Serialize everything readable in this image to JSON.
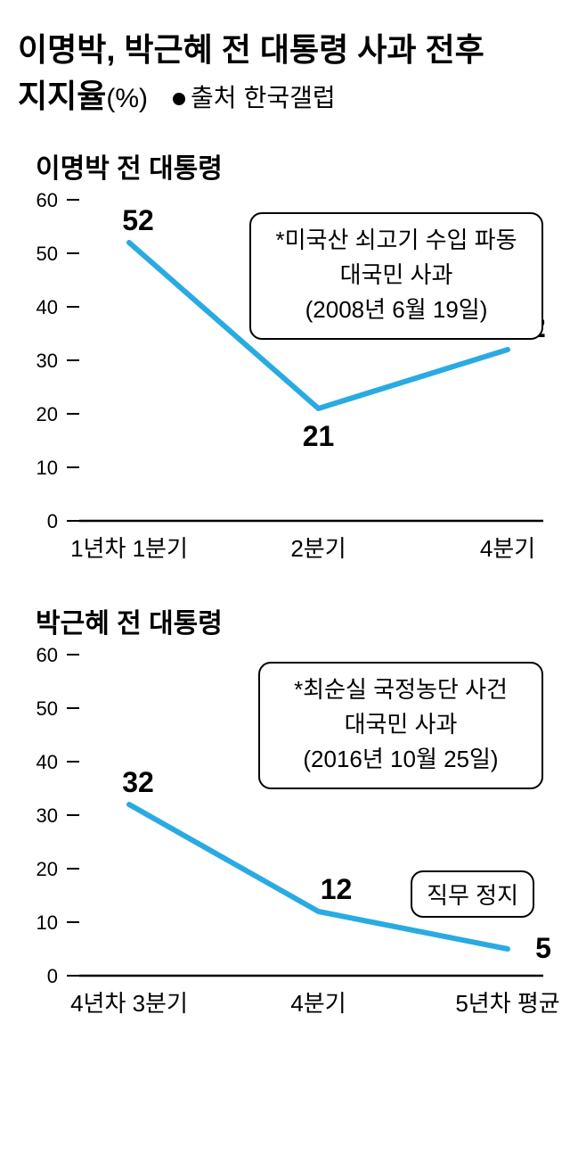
{
  "header": {
    "title_line1": "이명박, 박근혜 전 대통령 사과 전후",
    "title_line2_strong": "지지율",
    "unit": "(%)",
    "source_label": "출처",
    "source_value": "한국갤럽"
  },
  "chart1": {
    "type": "line",
    "title": "이명박 전 대통령",
    "line_color": "#29abe2",
    "line_width": 6,
    "ylim": [
      0,
      60
    ],
    "ytick_step": 10,
    "yticks": [
      0,
      10,
      20,
      30,
      40,
      50,
      60
    ],
    "categories": [
      "1년차 1분기",
      "2분기",
      "4분기"
    ],
    "values": [
      52,
      21,
      32
    ],
    "note": {
      "line1": "*미국산 쇠고기 수입 파동",
      "line2": "대국민 사과",
      "line3": "(2008년 6월 19일)"
    },
    "background_color": "#ffffff"
  },
  "chart2": {
    "type": "line",
    "title": "박근혜 전 대통령",
    "line_color": "#29abe2",
    "line_width": 6,
    "ylim": [
      0,
      60
    ],
    "ytick_step": 10,
    "yticks": [
      0,
      10,
      20,
      30,
      40,
      50,
      60
    ],
    "categories": [
      "4년차 3분기",
      "4분기",
      "5년차 평균"
    ],
    "values": [
      32,
      12,
      5
    ],
    "note": {
      "line1": "*최순실 국정농단 사건",
      "line2": "대국민 사과",
      "line3": "(2016년 10월 25일)"
    },
    "small_note": "직무 정지",
    "background_color": "#ffffff"
  }
}
